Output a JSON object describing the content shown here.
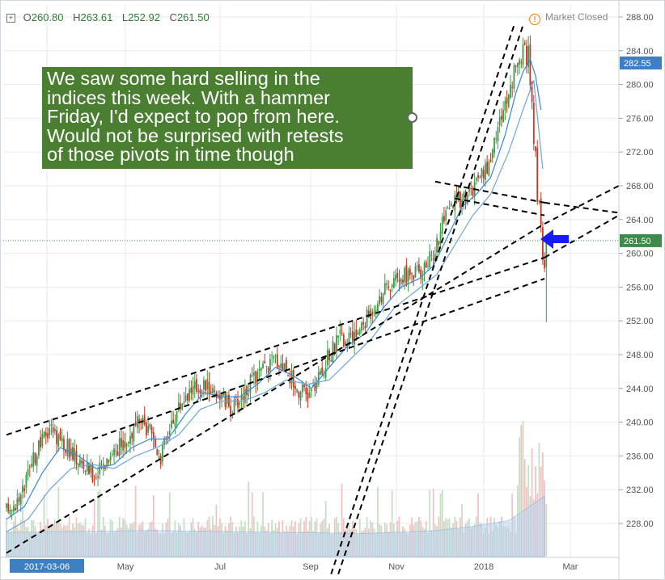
{
  "header": {
    "open_key": "O",
    "open": "260.80",
    "high_key": "H",
    "high": "263.61",
    "low_key": "L",
    "low": "252.92",
    "close_key": "C",
    "close": "261.50",
    "expand_icon": "plus-square-icon"
  },
  "market_status": {
    "label": "Market Closed",
    "icon": "alert-circle-icon",
    "color": "#f57c00"
  },
  "annotation": {
    "text": "We saw some hard selling in the\nindices this week. With a hammer\nFriday, I'd expect to pop from here.\nWould not be surprised with retests\nof those pivots in time though",
    "background": "#4a7f31",
    "arrow_icon": "arrow-left-icon",
    "arrow_color": "#1a1aff"
  },
  "chart_data": {
    "type": "candlestick",
    "title": "",
    "price_axis": {
      "ticks": [
        "228.00",
        "232.00",
        "236.00",
        "240.00",
        "244.00",
        "248.00",
        "252.00",
        "256.00",
        "260.00",
        "264.00",
        "268.00",
        "272.00",
        "276.00",
        "280.00",
        "284.00",
        "288.00"
      ],
      "range": [
        223.5,
        290
      ]
    },
    "time_axis": {
      "ticks": [
        {
          "label": "2017-03-06",
          "date": "2017-03-06",
          "highlight": true
        },
        {
          "label": "May",
          "date": "2017-05-01"
        },
        {
          "label": "Jul",
          "date": "2017-07-03"
        },
        {
          "label": "Sep",
          "date": "2017-09-01"
        },
        {
          "label": "Nov",
          "date": "2017-11-01"
        },
        {
          "label": "2018",
          "date": "2018-01-02"
        },
        {
          "label": "Mar",
          "date": "2018-03-01"
        }
      ]
    },
    "price_labels": [
      {
        "value": 282.55,
        "label": "282.55",
        "color": "#3d7fc0"
      },
      {
        "value": 261.5,
        "label": "261.50",
        "color": "#3d8b4a"
      }
    ],
    "last_close": 261.5,
    "price_path": [
      [
        0,
        229.5
      ],
      [
        8,
        231
      ],
      [
        16,
        236
      ],
      [
        24,
        239.5
      ],
      [
        30,
        238
      ],
      [
        36,
        236.5
      ],
      [
        42,
        235
      ],
      [
        50,
        233.5
      ],
      [
        58,
        236.5
      ],
      [
        66,
        237.5
      ],
      [
        74,
        240
      ],
      [
        80,
        238.5
      ],
      [
        86,
        236
      ],
      [
        92,
        240
      ],
      [
        100,
        243.5
      ],
      [
        110,
        244.5
      ],
      [
        118,
        243.5
      ],
      [
        126,
        241.5
      ],
      [
        134,
        244
      ],
      [
        142,
        246
      ],
      [
        150,
        247.5
      ],
      [
        156,
        246.5
      ],
      [
        162,
        244
      ],
      [
        168,
        243
      ],
      [
        174,
        245
      ],
      [
        180,
        248
      ],
      [
        186,
        250
      ],
      [
        192,
        249.5
      ],
      [
        200,
        252
      ],
      [
        208,
        255
      ],
      [
        216,
        256.5
      ],
      [
        224,
        257.5
      ],
      [
        232,
        258
      ],
      [
        238,
        260
      ],
      [
        244,
        264
      ],
      [
        250,
        266
      ],
      [
        256,
        267
      ],
      [
        262,
        268
      ],
      [
        268,
        270
      ],
      [
        274,
        275
      ],
      [
        280,
        279
      ],
      [
        285,
        283
      ],
      [
        289,
        284
      ],
      [
        292,
        281
      ],
      [
        295,
        271
      ],
      [
        297,
        265
      ],
      [
        299,
        257
      ],
      [
        301,
        261.5
      ]
    ],
    "sma_fast": [
      [
        0,
        228.5
      ],
      [
        10,
        230
      ],
      [
        20,
        234
      ],
      [
        30,
        237
      ],
      [
        40,
        236
      ],
      [
        50,
        234.5
      ],
      [
        60,
        235
      ],
      [
        70,
        237
      ],
      [
        80,
        238
      ],
      [
        90,
        238
      ],
      [
        100,
        241
      ],
      [
        110,
        243.5
      ],
      [
        120,
        243
      ],
      [
        130,
        243
      ],
      [
        140,
        244.5
      ],
      [
        150,
        246.5
      ],
      [
        160,
        245.5
      ],
      [
        170,
        244
      ],
      [
        180,
        246.5
      ],
      [
        190,
        249
      ],
      [
        200,
        250.5
      ],
      [
        210,
        253.5
      ],
      [
        220,
        256
      ],
      [
        230,
        257
      ],
      [
        238,
        258.5
      ],
      [
        246,
        262
      ],
      [
        254,
        265.5
      ],
      [
        262,
        267
      ],
      [
        270,
        269
      ],
      [
        278,
        274
      ],
      [
        284,
        279
      ],
      [
        288,
        281.5
      ],
      [
        292,
        283
      ],
      [
        295,
        281
      ],
      [
        298,
        277
      ]
    ],
    "sma_slow": [
      [
        0,
        227
      ],
      [
        12,
        228.5
      ],
      [
        24,
        232
      ],
      [
        36,
        234.5
      ],
      [
        48,
        235
      ],
      [
        60,
        234.5
      ],
      [
        72,
        236
      ],
      [
        84,
        237
      ],
      [
        96,
        238.5
      ],
      [
        108,
        241.5
      ],
      [
        120,
        242.5
      ],
      [
        132,
        242.5
      ],
      [
        144,
        243.5
      ],
      [
        156,
        245
      ],
      [
        168,
        244.5
      ],
      [
        180,
        245
      ],
      [
        192,
        247.5
      ],
      [
        204,
        250
      ],
      [
        216,
        253.5
      ],
      [
        228,
        255.5
      ],
      [
        240,
        257.5
      ],
      [
        250,
        261
      ],
      [
        260,
        264.5
      ],
      [
        270,
        267
      ],
      [
        280,
        272
      ],
      [
        288,
        277
      ],
      [
        294,
        280.5
      ],
      [
        299,
        270
      ]
    ],
    "volume_overlay_line": [
      [
        0,
        0.24
      ],
      [
        40,
        0.25
      ],
      [
        80,
        0.26
      ],
      [
        120,
        0.25
      ],
      [
        160,
        0.24
      ],
      [
        200,
        0.23
      ],
      [
        240,
        0.26
      ],
      [
        260,
        0.3
      ],
      [
        280,
        0.36
      ],
      [
        300,
        0.6
      ]
    ],
    "trendlines": [
      {
        "from": [
          0,
          238.5
        ],
        "to": [
          300,
          259.5
        ]
      },
      {
        "from": [
          0,
          224.5
        ],
        "to": [
          300,
          263.5
        ]
      },
      {
        "from": [
          48,
          238
        ],
        "to": [
          300,
          257
        ]
      },
      {
        "from": [
          250,
          266.5
        ],
        "to": [
          300,
          264.5
        ]
      },
      {
        "from": [
          239,
          268.5
        ],
        "to": [
          300,
          266
        ]
      },
      {
        "from": [
          185,
          222
        ],
        "to": [
          288,
          287
        ]
      },
      {
        "from": [
          181,
          222
        ],
        "to": [
          283,
          287
        ]
      }
    ],
    "colors": {
      "up": "#3f9a49",
      "down": "#c0392b",
      "sma_fast": "#3a86d6",
      "sma_slow": "#6ea6d8",
      "volume_up": "#c7dfc7",
      "volume_down": "#f0c4c4",
      "volume_area": "#b9d4ee",
      "trendline": "#000000",
      "grid": "#e6ebef",
      "axis_label_highlight": "#3d7fc0"
    },
    "grid": true,
    "legend": "none"
  }
}
